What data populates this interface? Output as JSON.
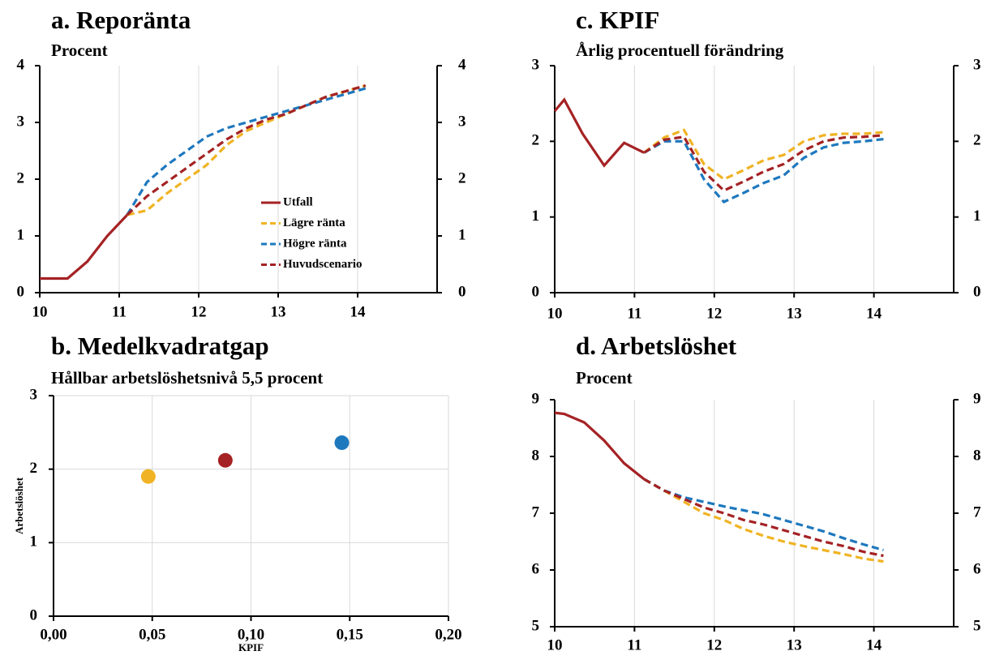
{
  "chart_data": [
    {
      "type": "line",
      "title": "a. Reporänta",
      "subtitle": "Procent",
      "xlim": [
        10,
        15
      ],
      "xticks": [
        10,
        11,
        12,
        13,
        14
      ],
      "ylim": [
        0,
        4
      ],
      "yticks": [
        0,
        1,
        2,
        3,
        4
      ],
      "grid": "x",
      "right_axis": true,
      "legend": "center-right",
      "series": [
        {
          "name": "Utfall",
          "color": "#a52224",
          "dashed": false,
          "x": [
            10,
            10.35,
            10.6,
            10.85,
            11.1
          ],
          "values": [
            0.25,
            0.25,
            0.55,
            1.0,
            1.37
          ]
        },
        {
          "name": "Lägre ränta",
          "color": "#f0b323",
          "dashed": true,
          "x": [
            11.1,
            11.35,
            11.6,
            11.85,
            12.1,
            12.35,
            12.6,
            12.85,
            13.1,
            13.35,
            13.6,
            13.85,
            14.1
          ],
          "values": [
            1.37,
            1.45,
            1.75,
            2.0,
            2.25,
            2.6,
            2.85,
            3.0,
            3.15,
            3.3,
            3.45,
            3.55,
            3.65
          ]
        },
        {
          "name": "Högre ränta",
          "color": "#1e78be",
          "dashed": true,
          "x": [
            11.1,
            11.35,
            11.6,
            11.85,
            12.1,
            12.35,
            12.6,
            12.85,
            13.1,
            13.35,
            13.6,
            13.85,
            14.1
          ],
          "values": [
            1.37,
            1.95,
            2.25,
            2.5,
            2.75,
            2.9,
            3.0,
            3.1,
            3.2,
            3.3,
            3.4,
            3.5,
            3.6
          ]
        },
        {
          "name": "Huvudscenario",
          "color": "#a52224",
          "dashed": true,
          "x": [
            11.1,
            11.35,
            11.6,
            11.85,
            12.1,
            12.35,
            12.6,
            12.85,
            13.1,
            13.35,
            13.6,
            13.85,
            14.1
          ],
          "values": [
            1.37,
            1.7,
            1.95,
            2.2,
            2.45,
            2.7,
            2.9,
            3.05,
            3.15,
            3.3,
            3.45,
            3.55,
            3.65
          ]
        }
      ]
    },
    {
      "type": "scatter",
      "title": "b. Medelkvadratgap",
      "subtitle": "Hållbar arbetslöshetsnivå 5,5 procent",
      "x_label": "KPIF",
      "y_label": "Arbetslöshet",
      "xlim": [
        0,
        0.2
      ],
      "xticks": [
        {
          "value": 0,
          "label": "0,00"
        },
        {
          "value": 0.05,
          "label": "0,05"
        },
        {
          "value": 0.1,
          "label": "0,10"
        },
        {
          "value": 0.15,
          "label": "0,15"
        },
        {
          "value": 0.2,
          "label": "0,20"
        }
      ],
      "ylim": [
        0,
        3
      ],
      "yticks": [
        0,
        1,
        2,
        3
      ],
      "grid": "both",
      "right_axis": false,
      "x": [
        0.048,
        0.087,
        0.146
      ],
      "values": [
        1.9,
        2.12,
        2.36
      ],
      "colors": [
        "#f0b323",
        "#a52224",
        "#1e78be"
      ]
    },
    {
      "type": "line",
      "title": "c. KPIF",
      "subtitle": "Årlig procentuell förändring",
      "xlim": [
        10,
        15
      ],
      "xticks": [
        10,
        11,
        12,
        13,
        14
      ],
      "ylim": [
        0,
        3
      ],
      "yticks": [
        0,
        1,
        2,
        3
      ],
      "grid": "x",
      "right_axis": true,
      "series": [
        {
          "name": "Utfall",
          "color": "#a52224",
          "dashed": false,
          "x": [
            10,
            10.12,
            10.35,
            10.62,
            10.87,
            11.12
          ],
          "values": [
            2.4,
            2.55,
            2.1,
            1.68,
            1.98,
            1.85
          ]
        },
        {
          "name": "Lägre ränta",
          "color": "#f0b323",
          "dashed": true,
          "x": [
            11.12,
            11.37,
            11.62,
            11.87,
            12.12,
            12.37,
            12.62,
            12.87,
            13.12,
            13.37,
            13.62,
            13.87,
            14.12
          ],
          "values": [
            1.85,
            2.05,
            2.15,
            1.7,
            1.5,
            1.62,
            1.75,
            1.82,
            2.0,
            2.08,
            2.1,
            2.1,
            2.12
          ]
        },
        {
          "name": "Högre ränta",
          "color": "#1e78be",
          "dashed": true,
          "x": [
            11.12,
            11.37,
            11.62,
            11.87,
            12.12,
            12.37,
            12.62,
            12.87,
            13.12,
            13.37,
            13.62,
            13.87,
            14.12
          ],
          "values": [
            1.85,
            2.0,
            2.0,
            1.5,
            1.2,
            1.32,
            1.45,
            1.55,
            1.78,
            1.92,
            1.98,
            2.0,
            2.03
          ]
        },
        {
          "name": "Huvudscenario",
          "color": "#a52224",
          "dashed": true,
          "x": [
            11.12,
            11.37,
            11.62,
            11.87,
            12.12,
            12.37,
            12.62,
            12.87,
            13.12,
            13.37,
            13.62,
            13.87,
            14.12
          ],
          "values": [
            1.85,
            2.02,
            2.06,
            1.6,
            1.35,
            1.47,
            1.6,
            1.7,
            1.88,
            2.0,
            2.05,
            2.06,
            2.08
          ]
        }
      ]
    },
    {
      "type": "line",
      "title": "d. Arbetslöshet",
      "subtitle": "Procent",
      "xlim": [
        10,
        15
      ],
      "xticks": [
        10,
        11,
        12,
        13,
        14
      ],
      "ylim": [
        5,
        9
      ],
      "yticks": [
        5,
        6,
        7,
        8,
        9
      ],
      "grid": "x",
      "right_axis": true,
      "series": [
        {
          "name": "Utfall",
          "color": "#a52224",
          "dashed": false,
          "x": [
            10,
            10.12,
            10.37,
            10.62,
            10.87,
            11.12
          ],
          "values": [
            8.77,
            8.75,
            8.6,
            8.28,
            7.88,
            7.6
          ]
        },
        {
          "name": "Lägre ränta",
          "color": "#f0b323",
          "dashed": true,
          "x": [
            11.12,
            11.37,
            11.62,
            11.87,
            12.12,
            12.37,
            12.62,
            12.87,
            13.12,
            13.37,
            13.62,
            13.87,
            14.12
          ],
          "values": [
            7.6,
            7.4,
            7.2,
            7.0,
            6.88,
            6.72,
            6.6,
            6.5,
            6.42,
            6.35,
            6.28,
            6.2,
            6.15
          ]
        },
        {
          "name": "Högre ränta",
          "color": "#1e78be",
          "dashed": true,
          "x": [
            11.12,
            11.37,
            11.62,
            11.87,
            12.12,
            12.37,
            12.62,
            12.87,
            13.12,
            13.37,
            13.62,
            13.87,
            14.12
          ],
          "values": [
            7.6,
            7.4,
            7.28,
            7.2,
            7.12,
            7.05,
            6.98,
            6.88,
            6.78,
            6.68,
            6.56,
            6.45,
            6.35
          ]
        },
        {
          "name": "Huvudscenario",
          "color": "#a52224",
          "dashed": true,
          "x": [
            11.12,
            11.37,
            11.62,
            11.87,
            12.12,
            12.37,
            12.62,
            12.87,
            13.12,
            13.37,
            13.62,
            13.87,
            14.12
          ],
          "values": [
            7.6,
            7.4,
            7.25,
            7.1,
            7.0,
            6.88,
            6.8,
            6.7,
            6.6,
            6.5,
            6.42,
            6.32,
            6.25
          ]
        }
      ]
    }
  ]
}
